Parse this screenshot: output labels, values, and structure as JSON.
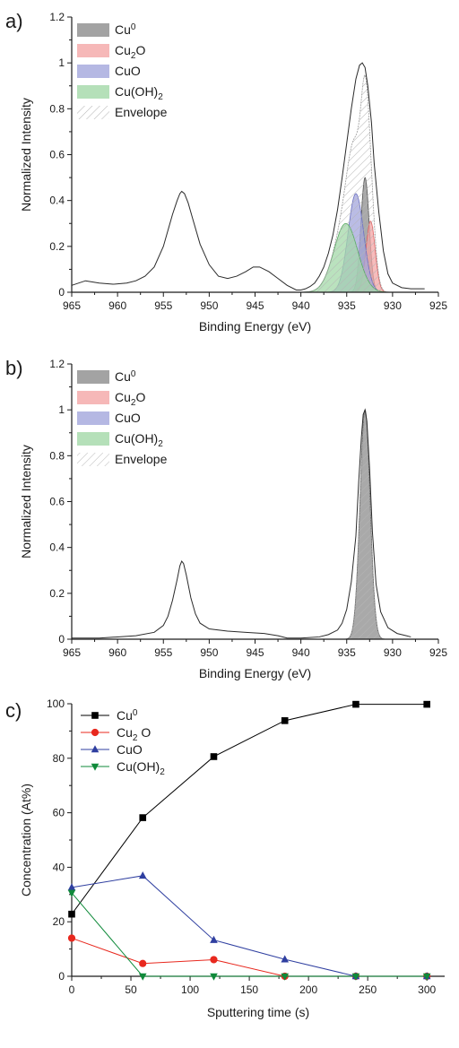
{
  "chart_data": [
    {
      "panel": "a)",
      "type": "line",
      "xlabel": "Binding Energy (eV)",
      "ylabel": "Normalized Intensity",
      "xlim": [
        965,
        925
      ],
      "ylim": [
        0,
        1.2
      ],
      "xticks": [
        "965",
        "960",
        "955",
        "950",
        "945",
        "940",
        "935",
        "930",
        "925"
      ],
      "yticks": [
        "0",
        "0.2",
        "0.4",
        "0.6",
        "0.8",
        "1",
        "1.2"
      ],
      "legend": [
        {
          "label": "Cu",
          "sup": "0",
          "sub": "",
          "tail": "",
          "color": "#8c8c8c"
        },
        {
          "label": "Cu",
          "sup": "",
          "sub": "2",
          "tail": "O",
          "color": "#f4a6a6"
        },
        {
          "label": "CuO",
          "sup": "",
          "sub": "",
          "tail": "",
          "color": "#a3a6dc"
        },
        {
          "label": "Cu(OH)",
          "sup": "",
          "sub": "2",
          "tail": "",
          "color": "#a3d8a8"
        },
        {
          "label": "Envelope",
          "sup": "",
          "sub": "",
          "tail": "",
          "color": "#cccccc"
        }
      ],
      "raw_spectrum": {
        "x": [
          965,
          963.5,
          962,
          960.5,
          959,
          958,
          957,
          956,
          955,
          954.5,
          954,
          953.5,
          953.2,
          953,
          952.7,
          952.3,
          951.8,
          951,
          950,
          949,
          948,
          947,
          946,
          945.2,
          944.5,
          943.5,
          942.5,
          941.5,
          940.5,
          940,
          939.5,
          939,
          938.5,
          938,
          937.5,
          937,
          936.5,
          936,
          935.5,
          935,
          934.5,
          934,
          933.6,
          933.3,
          933,
          932.7,
          932.3,
          932,
          931.5,
          931,
          930.5,
          930,
          929,
          928,
          927,
          926.5
        ],
        "y": [
          0.03,
          0.05,
          0.04,
          0.035,
          0.04,
          0.05,
          0.07,
          0.11,
          0.2,
          0.27,
          0.34,
          0.4,
          0.43,
          0.44,
          0.43,
          0.39,
          0.32,
          0.21,
          0.12,
          0.07,
          0.06,
          0.07,
          0.09,
          0.11,
          0.11,
          0.09,
          0.06,
          0.03,
          0.01,
          0.01,
          0.015,
          0.025,
          0.04,
          0.07,
          0.11,
          0.17,
          0.25,
          0.36,
          0.5,
          0.65,
          0.8,
          0.93,
          0.99,
          1.0,
          0.98,
          0.9,
          0.74,
          0.56,
          0.35,
          0.18,
          0.08,
          0.04,
          0.02,
          0.015,
          0.015,
          0.015
        ]
      },
      "fit_components": [
        {
          "name": "Cu0",
          "center": 933.0,
          "width": 0.45,
          "height": 0.5
        },
        {
          "name": "Cu2O",
          "center": 932.4,
          "width": 0.5,
          "height": 0.31
        },
        {
          "name": "CuO",
          "center": 934.0,
          "width": 0.85,
          "height": 0.43
        },
        {
          "name": "Cu(OH)2",
          "center": 935.1,
          "width": 1.3,
          "height": 0.3
        }
      ]
    },
    {
      "panel": "b)",
      "type": "line",
      "xlabel": "Binding Energy (eV)",
      "ylabel": "Normalized Intensity",
      "xlim": [
        965,
        925
      ],
      "ylim": [
        0,
        1.2
      ],
      "xticks": [
        "965",
        "960",
        "955",
        "950",
        "945",
        "940",
        "935",
        "930",
        "925"
      ],
      "yticks": [
        "0",
        "0.2",
        "0.4",
        "0.6",
        "0.8",
        "1",
        "1.2"
      ],
      "legend": [
        {
          "label": "Cu",
          "sup": "0",
          "sub": "",
          "tail": "",
          "color": "#8c8c8c"
        },
        {
          "label": "Cu",
          "sup": "",
          "sub": "2",
          "tail": "O",
          "color": "#f4a6a6"
        },
        {
          "label": "CuO",
          "sup": "",
          "sub": "",
          "tail": "",
          "color": "#a3a6dc"
        },
        {
          "label": "Cu(OH)",
          "sup": "",
          "sub": "2",
          "tail": "",
          "color": "#a3d8a8"
        },
        {
          "label": "Envelope",
          "sup": "",
          "sub": "",
          "tail": "",
          "color": "#cccccc"
        }
      ],
      "raw_spectrum": {
        "x": [
          965,
          962,
          960,
          958,
          956,
          955,
          954.5,
          954,
          953.5,
          953.2,
          953,
          952.8,
          952.5,
          952,
          951.5,
          951,
          950,
          948,
          946,
          944,
          942.5,
          941.5,
          940,
          938,
          937,
          936,
          935.5,
          935,
          934.5,
          934,
          933.7,
          933.4,
          933.2,
          933,
          932.8,
          932.5,
          932.2,
          931.8,
          931.3,
          930.5,
          929.5,
          928.5,
          928
        ],
        "y": [
          0.005,
          0.005,
          0.01,
          0.015,
          0.03,
          0.06,
          0.1,
          0.17,
          0.26,
          0.32,
          0.34,
          0.33,
          0.28,
          0.18,
          0.11,
          0.07,
          0.045,
          0.035,
          0.03,
          0.025,
          0.015,
          0.005,
          0.005,
          0.01,
          0.02,
          0.04,
          0.07,
          0.13,
          0.25,
          0.45,
          0.68,
          0.88,
          0.98,
          1.0,
          0.95,
          0.74,
          0.47,
          0.24,
          0.12,
          0.05,
          0.025,
          0.015,
          0.01
        ]
      },
      "fit_components": [
        {
          "name": "Cu0",
          "center": 933.0,
          "width": 0.55,
          "height": 1.0
        }
      ]
    },
    {
      "panel": "c)",
      "type": "line",
      "xlabel": "Sputtering time (s)",
      "ylabel": "Concentration (At%)",
      "xlim": [
        0,
        315
      ],
      "ylim": [
        0,
        100
      ],
      "xticks": [
        "0",
        "50",
        "100",
        "150",
        "200",
        "250",
        "300"
      ],
      "yticks": [
        "0",
        "20",
        "40",
        "60",
        "80",
        "100"
      ],
      "legend_items": [
        {
          "label": "Cu",
          "sup": "0",
          "sub": "",
          "tail": ""
        },
        {
          "label": "Cu",
          "sup": "",
          "sub": "2",
          "tail": " O"
        },
        {
          "label": "CuO",
          "sup": "",
          "sub": "",
          "tail": ""
        },
        {
          "label": "Cu(OH)",
          "sup": "",
          "sub": "2",
          "tail": ""
        }
      ],
      "x": [
        0,
        60,
        120,
        180,
        240,
        300
      ],
      "series": [
        {
          "name": "Cu0",
          "marker": "square",
          "color": "#000000",
          "values": [
            22.8,
            58.2,
            80.6,
            93.8,
            99.8,
            99.8
          ]
        },
        {
          "name": "Cu2O",
          "marker": "circle",
          "color": "#e8281e",
          "values": [
            14.0,
            4.7,
            6.1,
            0.0,
            0.0,
            0.0
          ]
        },
        {
          "name": "CuO",
          "marker": "triangle-up",
          "color": "#2f3fa0",
          "values": [
            32.6,
            36.9,
            13.3,
            6.2,
            0.0,
            0.0
          ]
        },
        {
          "name": "Cu(OH)2",
          "marker": "triangle-down",
          "color": "#0f8a3a",
          "values": [
            30.6,
            0.0,
            0.0,
            0.0,
            0.0,
            0.0
          ]
        }
      ]
    }
  ]
}
